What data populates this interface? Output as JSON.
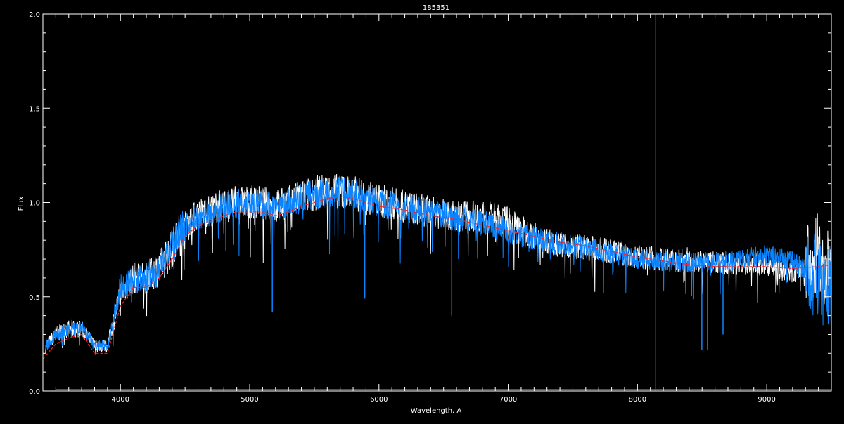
{
  "chart_data": {
    "type": "line",
    "title": "185351",
    "xlabel": "Wavelength, A",
    "ylabel": "Flux",
    "xlim": [
      3400,
      9500
    ],
    "ylim": [
      0.0,
      2.0
    ],
    "xticks": [
      4000,
      5000,
      6000,
      7000,
      8000,
      9000
    ],
    "xtick_labels": [
      "4000",
      "5000",
      "6000",
      "7000",
      "8000",
      "9000"
    ],
    "yticks": [
      0.0,
      0.5,
      1.0,
      1.5,
      2.0
    ],
    "ytick_labels": [
      "0.0",
      "0.5",
      "1.0",
      "1.5",
      "2.0"
    ],
    "grid": false,
    "vertical_marker": 8140,
    "colors": {
      "observed": "#ffffff",
      "model": "#0a84ff",
      "smoothed": "#ff2020",
      "marker": "#1f6fbf",
      "axes": "#ffffff"
    },
    "x": [
      3400,
      3500,
      3600,
      3700,
      3800,
      3900,
      4000,
      4100,
      4200,
      4300,
      4400,
      4500,
      4600,
      4700,
      4800,
      4900,
      5000,
      5100,
      5200,
      5300,
      5400,
      5500,
      5600,
      5700,
      5800,
      5900,
      6000,
      6200,
      6400,
      6600,
      6800,
      7000,
      7200,
      7400,
      7600,
      7800,
      8000,
      8200,
      8400,
      8600,
      8800,
      9000,
      9200,
      9400,
      9500
    ],
    "series": [
      {
        "values": [
          0.22,
          0.3,
          0.33,
          0.33,
          0.24,
          0.24,
          0.52,
          0.6,
          0.6,
          0.65,
          0.76,
          0.88,
          0.94,
          0.96,
          0.99,
          1.0,
          1.0,
          1.0,
          0.98,
          1.0,
          1.03,
          1.05,
          1.06,
          1.06,
          1.05,
          1.03,
          1.01,
          0.98,
          0.95,
          0.93,
          0.93,
          0.9,
          0.82,
          0.78,
          0.76,
          0.74,
          0.71,
          0.7,
          0.7,
          0.68,
          0.67,
          0.67,
          0.62,
          0.7,
          0.62
        ]
      },
      {
        "values": [
          0.22,
          0.3,
          0.32,
          0.33,
          0.24,
          0.24,
          0.55,
          0.6,
          0.6,
          0.65,
          0.76,
          0.88,
          0.93,
          0.95,
          0.98,
          1.0,
          1.0,
          0.99,
          0.98,
          1.0,
          1.02,
          1.04,
          1.05,
          1.06,
          1.05,
          1.03,
          1.0,
          0.97,
          0.94,
          0.92,
          0.89,
          0.85,
          0.81,
          0.78,
          0.76,
          0.73,
          0.7,
          0.69,
          0.68,
          0.68,
          0.7,
          0.72,
          0.69,
          0.6,
          0.55
        ]
      },
      {
        "values": [
          0.17,
          0.25,
          0.28,
          0.3,
          0.2,
          0.2,
          0.45,
          0.55,
          0.55,
          0.6,
          0.7,
          0.82,
          0.88,
          0.9,
          0.93,
          0.95,
          0.95,
          0.95,
          0.93,
          0.95,
          0.98,
          1.0,
          1.02,
          1.03,
          1.02,
          1.0,
          0.98,
          0.96,
          0.93,
          0.91,
          0.88,
          0.85,
          0.82,
          0.79,
          0.77,
          0.74,
          0.71,
          0.69,
          0.67,
          0.66,
          0.66,
          0.66,
          0.65,
          0.66,
          0.67
        ]
      }
    ]
  }
}
